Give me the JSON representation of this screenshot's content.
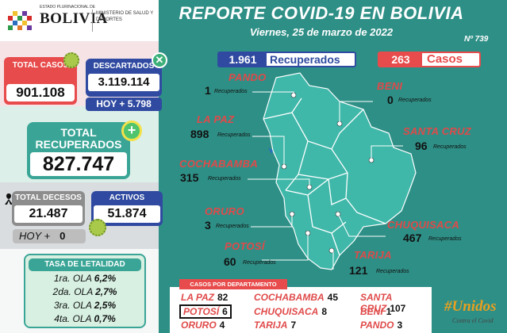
{
  "header": {
    "title": "REPORTE COVID-19 EN BOLIVIA",
    "date": "Viernes, 25 de marzo de 2022",
    "report_number": "Nº 739"
  },
  "logo": {
    "small": "ESTADO PLURINACIONAL DE",
    "big": "BOLIVIA",
    "ministry": "MINISTERIO DE SALUD Y DEPORTES"
  },
  "summary": {
    "total_casos_label": "TOTAL CASOS",
    "total_casos": "901.108",
    "descartados_label": "DESCARTADOS",
    "descartados": "3.119.114",
    "hoy_descartados": "HOY + 5.798",
    "total_recuperados_label": "TOTAL RECUPERADOS",
    "total_recuperados": "827.747",
    "decesos_label": "TOTAL DECESOS",
    "decesos": "21.487",
    "hoy_decesos_label": "HOY +",
    "hoy_decesos": "0",
    "activos_label": "ACTIVOS",
    "activos": "51.874"
  },
  "tasa": {
    "title": "TASA DE LETALIDAD",
    "rows": [
      {
        "ola": "1ra. OLA",
        "valor": "6,2%"
      },
      {
        "ola": "2da. OLA",
        "valor": "2,7%"
      },
      {
        "ola": "3ra. OLA",
        "valor": "2,5%"
      },
      {
        "ola": "4ta. OLA",
        "valor": "0,7%"
      }
    ]
  },
  "daily": {
    "recuperados_num": "1.961",
    "recuperados_label": "Recuperados",
    "casos_num": "263",
    "casos_label": "Casos"
  },
  "departments": {
    "recuperados_sub": "Recuperados",
    "pando": {
      "name": "PANDO",
      "recuperados": "1"
    },
    "beni": {
      "name": "BENI",
      "recuperados": "0"
    },
    "lapaz": {
      "name": "LA PAZ",
      "recuperados": "898"
    },
    "santacruz": {
      "name": "SANTA CRUZ",
      "recuperados": "96"
    },
    "cochabamba": {
      "name": "COCHABAMBA",
      "recuperados": "315"
    },
    "oruro": {
      "name": "ORURO",
      "recuperados": "3"
    },
    "chuquisaca": {
      "name": "CHUQUISACA",
      "recuperados": "467"
    },
    "potosi": {
      "name": "POTOSÍ",
      "recuperados": "60"
    },
    "tarija": {
      "name": "TARIJA",
      "recuperados": "121"
    }
  },
  "casos_table": {
    "title": "CASOS POR DEPARTAMENTO",
    "rows": [
      [
        {
          "d": "LA PAZ",
          "v": "82"
        },
        {
          "d": "COCHABAMBA",
          "v": "45"
        },
        {
          "d": "SANTA CRUZ",
          "v": "107"
        }
      ],
      [
        {
          "d": "POTOSÍ",
          "v": "6"
        },
        {
          "d": "CHUQUISACA",
          "v": "8"
        },
        {
          "d": "BENI",
          "v": "1"
        }
      ],
      [
        {
          "d": "ORURO",
          "v": "4"
        },
        {
          "d": "TARIJA",
          "v": "7"
        },
        {
          "d": "PANDO",
          "v": "3"
        }
      ]
    ]
  },
  "campaign": {
    "main": "#Unidos",
    "sub": "Contra el Covid"
  },
  "colors": {
    "teal": "#2e8f86",
    "red": "#e84b4b",
    "blue": "#2f4aa0",
    "green": "#3aa596"
  }
}
